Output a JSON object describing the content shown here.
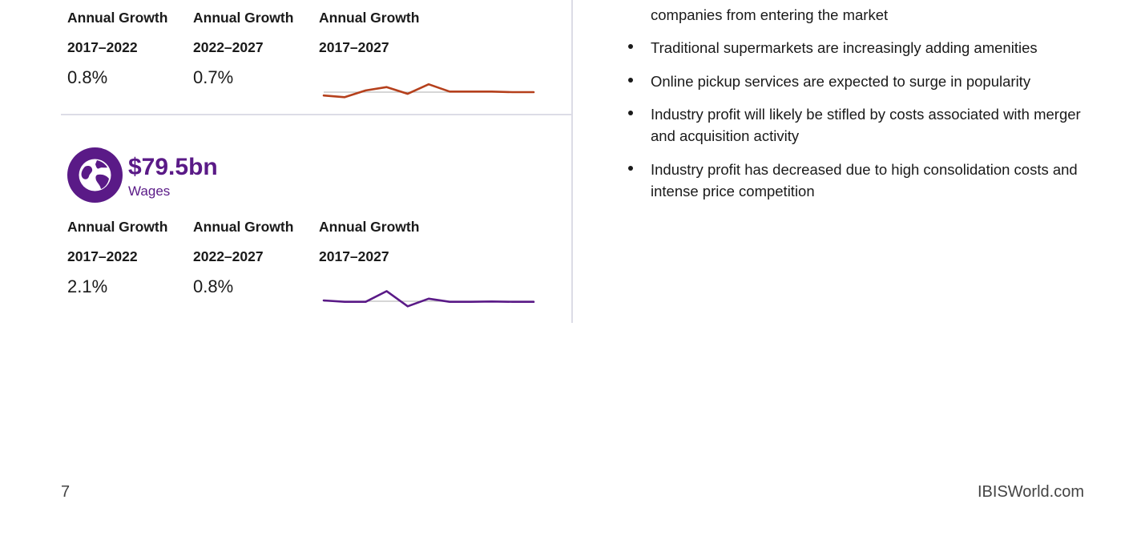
{
  "section_top": {
    "columns": [
      {
        "heading": "Annual Growth",
        "period": "2017–2022",
        "value": "0.8%"
      },
      {
        "heading": "Annual Growth",
        "period": "2022–2027",
        "value": "0.7%"
      },
      {
        "heading": "Annual Growth",
        "period": "2017–2027"
      }
    ],
    "sparkline_color": "#b5401c"
  },
  "section_wages": {
    "metric_value": "$79.5bn",
    "metric_label": "Wages",
    "icon": "globe-icon",
    "accent_color": "#5a1a87",
    "columns": [
      {
        "heading": "Annual Growth",
        "period": "2017–2022",
        "value": "2.1%"
      },
      {
        "heading": "Annual Growth",
        "period": "2022–2027",
        "value": "0.8%"
      },
      {
        "heading": "Annual Growth",
        "period": "2017–2027"
      }
    ],
    "sparkline_color": "#5a1a87"
  },
  "bullets": [
    "companies from entering the market",
    "Traditional supermarkets are increasingly adding amenities",
    "Online pickup services are expected to surge in popularity",
    "Industry profit will likely be stifled by costs associated with merger and acquisition activity",
    "Industry profit has decreased due to high consolidation costs and intense price competition"
  ],
  "footer": {
    "page_number": "7",
    "brand": "IBISWorld.com"
  },
  "chart_data": [
    {
      "type": "line",
      "x": [
        2017,
        2018,
        2019,
        2020,
        2021,
        2022,
        2023,
        2024,
        2025,
        2026,
        2027
      ],
      "values": [
        -0.6,
        -0.9,
        0.3,
        0.9,
        -0.3,
        1.4,
        0.1,
        0.1,
        0.1,
        0.0,
        0.0
      ],
      "ylim": [
        -2,
        2
      ]
    },
    {
      "type": "line",
      "x": [
        2017,
        2018,
        2019,
        2020,
        2021,
        2022,
        2023,
        2024,
        2025,
        2026,
        2027
      ],
      "values": [
        0.3,
        -0.2,
        -0.2,
        3.6,
        -1.8,
        0.9,
        -0.2,
        -0.2,
        -0.1,
        -0.2,
        -0.2
      ],
      "ylim": [
        -4,
        4
      ]
    }
  ]
}
